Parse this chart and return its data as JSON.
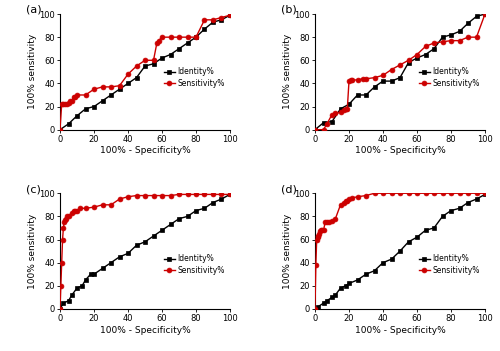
{
  "panel_a": {
    "sensitivity": [
      [
        0,
        0
      ],
      [
        1,
        22
      ],
      [
        2,
        22
      ],
      [
        3,
        22
      ],
      [
        4,
        22
      ],
      [
        5,
        23
      ],
      [
        6,
        25
      ],
      [
        7,
        25
      ],
      [
        8,
        28
      ],
      [
        9,
        28
      ],
      [
        10,
        30
      ],
      [
        15,
        30
      ],
      [
        20,
        35
      ],
      [
        25,
        37
      ],
      [
        30,
        37
      ],
      [
        35,
        38
      ],
      [
        40,
        48
      ],
      [
        45,
        55
      ],
      [
        50,
        60
      ],
      [
        55,
        60
      ],
      [
        57,
        75
      ],
      [
        58,
        77
      ],
      [
        60,
        80
      ],
      [
        65,
        80
      ],
      [
        70,
        80
      ],
      [
        75,
        80
      ],
      [
        80,
        80
      ],
      [
        85,
        95
      ],
      [
        90,
        95
      ],
      [
        95,
        97
      ],
      [
        100,
        99
      ]
    ],
    "identity": [
      [
        0,
        0
      ],
      [
        5,
        5
      ],
      [
        10,
        12
      ],
      [
        15,
        18
      ],
      [
        20,
        20
      ],
      [
        25,
        25
      ],
      [
        30,
        30
      ],
      [
        35,
        35
      ],
      [
        40,
        40
      ],
      [
        45,
        45
      ],
      [
        50,
        55
      ],
      [
        55,
        57
      ],
      [
        60,
        62
      ],
      [
        65,
        65
      ],
      [
        70,
        70
      ],
      [
        75,
        75
      ],
      [
        80,
        80
      ],
      [
        85,
        87
      ],
      [
        90,
        93
      ],
      [
        95,
        95
      ],
      [
        100,
        99
      ]
    ]
  },
  "panel_b": {
    "sensitivity": [
      [
        0,
        0
      ],
      [
        5,
        0
      ],
      [
        7,
        5
      ],
      [
        10,
        13
      ],
      [
        12,
        14
      ],
      [
        15,
        15
      ],
      [
        17,
        17
      ],
      [
        18,
        18
      ],
      [
        19,
        18
      ],
      [
        20,
        42
      ],
      [
        21,
        43
      ],
      [
        22,
        43
      ],
      [
        25,
        43
      ],
      [
        28,
        44
      ],
      [
        30,
        44
      ],
      [
        35,
        45
      ],
      [
        40,
        47
      ],
      [
        45,
        52
      ],
      [
        50,
        56
      ],
      [
        55,
        60
      ],
      [
        60,
        65
      ],
      [
        65,
        72
      ],
      [
        70,
        75
      ],
      [
        75,
        76
      ],
      [
        80,
        77
      ],
      [
        85,
        77
      ],
      [
        90,
        80
      ],
      [
        95,
        80
      ],
      [
        100,
        100
      ]
    ],
    "identity": [
      [
        0,
        0
      ],
      [
        5,
        6
      ],
      [
        10,
        7
      ],
      [
        15,
        18
      ],
      [
        20,
        22
      ],
      [
        25,
        30
      ],
      [
        30,
        30
      ],
      [
        35,
        37
      ],
      [
        40,
        42
      ],
      [
        45,
        42
      ],
      [
        50,
        45
      ],
      [
        55,
        58
      ],
      [
        60,
        62
      ],
      [
        65,
        65
      ],
      [
        70,
        70
      ],
      [
        75,
        80
      ],
      [
        80,
        82
      ],
      [
        85,
        85
      ],
      [
        90,
        92
      ],
      [
        95,
        98
      ],
      [
        100,
        100
      ]
    ]
  },
  "panel_c": {
    "sensitivity": [
      [
        0,
        0
      ],
      [
        0.5,
        20
      ],
      [
        1,
        40
      ],
      [
        1.5,
        60
      ],
      [
        2,
        70
      ],
      [
        2.5,
        75
      ],
      [
        3,
        77
      ],
      [
        3.5,
        78
      ],
      [
        4,
        80
      ],
      [
        5,
        80
      ],
      [
        7,
        83
      ],
      [
        8,
        85
      ],
      [
        9,
        85
      ],
      [
        10,
        85
      ],
      [
        12,
        87
      ],
      [
        15,
        87
      ],
      [
        20,
        88
      ],
      [
        25,
        90
      ],
      [
        30,
        90
      ],
      [
        35,
        95
      ],
      [
        40,
        97
      ],
      [
        45,
        98
      ],
      [
        50,
        98
      ],
      [
        55,
        98
      ],
      [
        60,
        98
      ],
      [
        65,
        98
      ],
      [
        70,
        99
      ],
      [
        75,
        99
      ],
      [
        80,
        99
      ],
      [
        85,
        99
      ],
      [
        90,
        99
      ],
      [
        95,
        99
      ],
      [
        100,
        99
      ]
    ],
    "identity": [
      [
        0,
        0
      ],
      [
        2,
        5
      ],
      [
        5,
        7
      ],
      [
        7,
        12
      ],
      [
        10,
        18
      ],
      [
        13,
        20
      ],
      [
        15,
        25
      ],
      [
        18,
        30
      ],
      [
        20,
        30
      ],
      [
        25,
        35
      ],
      [
        30,
        40
      ],
      [
        35,
        45
      ],
      [
        40,
        48
      ],
      [
        45,
        55
      ],
      [
        50,
        58
      ],
      [
        55,
        63
      ],
      [
        60,
        68
      ],
      [
        65,
        73
      ],
      [
        70,
        78
      ],
      [
        75,
        80
      ],
      [
        80,
        85
      ],
      [
        85,
        87
      ],
      [
        90,
        92
      ],
      [
        95,
        95
      ],
      [
        100,
        99
      ]
    ]
  },
  "panel_d": {
    "sensitivity": [
      [
        0,
        0
      ],
      [
        0.5,
        38
      ],
      [
        1,
        60
      ],
      [
        1.5,
        62
      ],
      [
        2,
        63
      ],
      [
        2.5,
        65
      ],
      [
        3,
        67
      ],
      [
        3.5,
        68
      ],
      [
        4,
        68
      ],
      [
        5,
        68
      ],
      [
        6,
        75
      ],
      [
        7,
        75
      ],
      [
        8,
        75
      ],
      [
        10,
        76
      ],
      [
        12,
        78
      ],
      [
        15,
        90
      ],
      [
        17,
        92
      ],
      [
        18,
        93
      ],
      [
        19,
        93
      ],
      [
        20,
        95
      ],
      [
        22,
        96
      ],
      [
        25,
        97
      ],
      [
        30,
        98
      ],
      [
        35,
        100
      ],
      [
        40,
        100
      ],
      [
        45,
        100
      ],
      [
        50,
        100
      ],
      [
        55,
        100
      ],
      [
        60,
        100
      ],
      [
        65,
        100
      ],
      [
        70,
        100
      ],
      [
        75,
        100
      ],
      [
        80,
        100
      ],
      [
        85,
        100
      ],
      [
        90,
        100
      ],
      [
        95,
        100
      ],
      [
        100,
        100
      ]
    ],
    "identity": [
      [
        0,
        0
      ],
      [
        2,
        2
      ],
      [
        5,
        5
      ],
      [
        7,
        7
      ],
      [
        10,
        10
      ],
      [
        12,
        12
      ],
      [
        15,
        18
      ],
      [
        18,
        20
      ],
      [
        20,
        22
      ],
      [
        25,
        25
      ],
      [
        30,
        30
      ],
      [
        35,
        33
      ],
      [
        40,
        40
      ],
      [
        45,
        43
      ],
      [
        50,
        50
      ],
      [
        55,
        58
      ],
      [
        60,
        62
      ],
      [
        65,
        68
      ],
      [
        70,
        70
      ],
      [
        75,
        80
      ],
      [
        80,
        85
      ],
      [
        85,
        87
      ],
      [
        90,
        92
      ],
      [
        95,
        95
      ],
      [
        100,
        99
      ]
    ]
  },
  "red_color": "#CC0000",
  "black_color": "#000000",
  "bg_color": "#FFFFFF",
  "sensitivity_label": "Sensitivity%",
  "identity_label": "Identity%",
  "xlabel": "100% - Specificity%",
  "ylabel": "100% sensitivity",
  "xticks": [
    0,
    20,
    40,
    60,
    80,
    100
  ],
  "yticks": [
    0,
    20,
    40,
    60,
    80,
    100
  ],
  "xlim": [
    0,
    100
  ],
  "ylim": [
    0,
    100
  ],
  "marker_size": 3.5,
  "line_width": 1.0,
  "panel_labels": [
    "(a)",
    "(b)",
    "(c)",
    "(d)"
  ]
}
